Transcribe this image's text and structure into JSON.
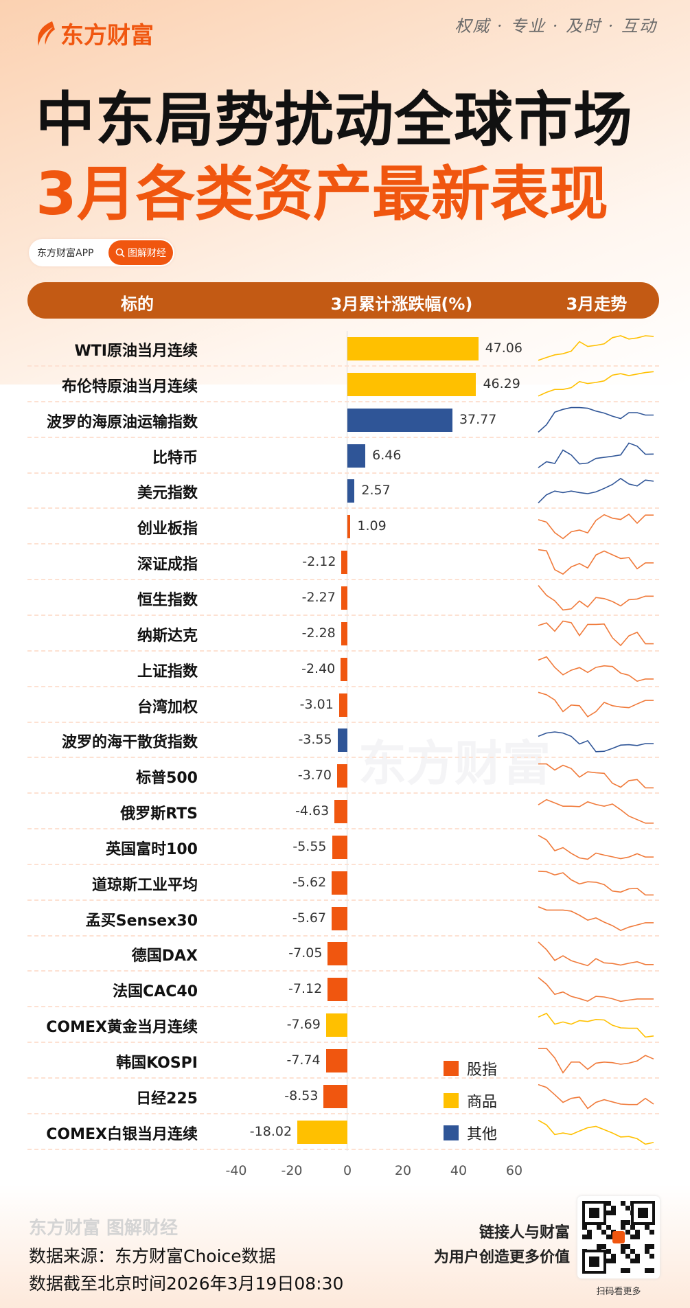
{
  "brand": {
    "logo": "东方财富",
    "slogan": "权威 · 专业 · 及时 · 互动"
  },
  "title": {
    "line1": "中东局势扰动全球市场",
    "line2": "3月各类资产最新表现"
  },
  "badge": {
    "app": "东方财富APP",
    "search_label": "图解财经",
    "icon": "search-icon"
  },
  "colors": {
    "equity": "#F0560F",
    "commodity": "#FFC000",
    "other": "#2F5597",
    "header": "#C35A14"
  },
  "table_header": {
    "col1": "标的",
    "col2": "3月累计涨跌幅(%)",
    "col3": "3月走势"
  },
  "chart_data": {
    "type": "bar",
    "orientation": "horizontal",
    "xlim": [
      -40,
      60
    ],
    "xticks": [
      "-40",
      "-20",
      "0",
      "20",
      "40",
      "60"
    ],
    "legend": [
      {
        "name": "股指",
        "category": "equity"
      },
      {
        "name": "商品",
        "category": "commodity"
      },
      {
        "name": "其他",
        "category": "other"
      }
    ],
    "legend_position": "bottom-right",
    "rows": [
      {
        "name": "WTI原油当月连续",
        "value": 47.06,
        "label": "47.06",
        "category": "commodity",
        "trend": [
          10,
          23,
          35,
          40,
          52,
          95,
          73,
          78,
          85,
          113,
          122,
          107,
          112,
          122,
          119
        ]
      },
      {
        "name": "布伦特原油当月连续",
        "value": 46.29,
        "label": "46.29",
        "category": "commodity",
        "trend": [
          10,
          27,
          40,
          40,
          48,
          76,
          67,
          72,
          79,
          105,
          112,
          103,
          110,
          117,
          121
        ]
      },
      {
        "name": "波罗的海原油运输指数",
        "value": 37.77,
        "label": "37.77",
        "category": "other",
        "trend": [
          8,
          42,
          99,
          112,
          120,
          120,
          117,
          104,
          95,
          81,
          70,
          97,
          97,
          86,
          86
        ]
      },
      {
        "name": "比特币",
        "value": 6.46,
        "label": "6.46",
        "category": "other",
        "trend": [
          9,
          36,
          28,
          89,
          67,
          26,
          30,
          51,
          56,
          61,
          67,
          121,
          107,
          70,
          71
        ]
      },
      {
        "name": "美元指数",
        "value": 2.57,
        "label": "2.57",
        "category": "other",
        "trend": [
          8,
          45,
          62,
          55,
          62,
          55,
          50,
          58,
          74,
          92,
          119,
          94,
          85,
          112,
          107
        ]
      },
      {
        "name": "创业板指",
        "value": 1.09,
        "label": "1.09",
        "category": "equity",
        "trend": [
          94,
          83,
          35,
          8,
          39,
          47,
          34,
          91,
          117,
          101,
          95,
          119,
          78,
          115,
          115
        ]
      },
      {
        "name": "深证成指",
        "value": -2.12,
        "label": "-2.12",
        "category": "equity",
        "trend": [
          120,
          115,
          29,
          9,
          42,
          57,
          37,
          96,
          114,
          97,
          80,
          84,
          33,
          60,
          60
        ]
      },
      {
        "name": "恒生指数",
        "value": -2.27,
        "label": "-2.27",
        "category": "equity",
        "trend": [
          120,
          75,
          50,
          8,
          13,
          49,
          22,
          65,
          60,
          47,
          27,
          55,
          58,
          71,
          71
        ]
      },
      {
        "name": "纳斯达克",
        "value": -2.28,
        "label": "-2.28",
        "category": "equity",
        "trend": [
          100,
          112,
          74,
          120,
          113,
          54,
          105,
          105,
          107,
          44,
          9,
          53,
          69,
          17,
          17
        ]
      },
      {
        "name": "上证指数",
        "value": -2.4,
        "label": "-2.40",
        "category": "equity",
        "trend": [
          105,
          120,
          72,
          38,
          59,
          71,
          49,
          72,
          79,
          76,
          46,
          36,
          9,
          19,
          19
        ]
      },
      {
        "name": "台湾加权",
        "value": -3.01,
        "label": "-3.01",
        "category": "equity",
        "trend": [
          121,
          110,
          86,
          33,
          63,
          60,
          10,
          33,
          75,
          60,
          54,
          51,
          68,
          84,
          84
        ]
      },
      {
        "name": "波罗的海干散货指数",
        "value": -3.55,
        "label": "-3.55",
        "category": "other",
        "trend": [
          80,
          95,
          100,
          95,
          80,
          45,
          60,
          10,
          12,
          25,
          40,
          42,
          38,
          47,
          47
        ]
      },
      {
        "name": "标普500",
        "value": -3.7,
        "label": "-3.70",
        "category": "equity",
        "trend": [
          117,
          117,
          89,
          111,
          96,
          57,
          81,
          77,
          74,
          29,
          11,
          41,
          46,
          8,
          8
        ]
      },
      {
        "name": "俄罗斯RTS",
        "value": -4.63,
        "label": "-4.63",
        "category": "equity",
        "trend": [
          93,
          117,
          102,
          87,
          87,
          85,
          107,
          95,
          87,
          97,
          71,
          42,
          26,
          10,
          10
        ]
      },
      {
        "name": "英国富时100",
        "value": -5.55,
        "label": "-5.55",
        "category": "equity",
        "trend": [
          117,
          96,
          47,
          61,
          35,
          14,
          8,
          36,
          27,
          19,
          11,
          18,
          33,
          18,
          18
        ]
      },
      {
        "name": "道琼斯工业平均",
        "value": -5.62,
        "label": "-5.62",
        "category": "equity",
        "trend": [
          116,
          114,
          99,
          109,
          77,
          58,
          68,
          66,
          55,
          26,
          21,
          36,
          38,
          8,
          8
        ]
      },
      {
        "name": "孟买Sensex30",
        "value": -5.67,
        "label": "-5.67",
        "category": "equity",
        "trend": [
          117,
          102,
          102,
          102,
          97,
          78,
          56,
          66,
          47,
          31,
          9,
          24,
          34,
          44,
          44
        ]
      },
      {
        "name": "德国DAX",
        "value": -7.05,
        "label": "-7.05",
        "category": "equity",
        "trend": [
          116,
          81,
          32,
          53,
          31,
          19,
          8,
          40,
          21,
          18,
          11,
          19,
          26,
          13,
          13
        ]
      },
      {
        "name": "法国CAC40",
        "value": -7.12,
        "label": "-7.12",
        "category": "equity",
        "trend": [
          117,
          86,
          40,
          51,
          31,
          21,
          9,
          31,
          28,
          20,
          8,
          14,
          19,
          19,
          19
        ]
      },
      {
        "name": "COMEX黄金当月连续",
        "value": -7.69,
        "label": "-7.69",
        "category": "commodity",
        "trend": [
          99,
          116,
          67,
          77,
          67,
          83,
          79,
          88,
          86,
          62,
          50,
          48,
          48,
          8,
          13
        ]
      },
      {
        "name": "韩国KOSPI",
        "value": -7.74,
        "label": "-7.74",
        "category": "equity",
        "trend": [
          119,
          119,
          76,
          8,
          57,
          57,
          24,
          52,
          57,
          54,
          47,
          52,
          62,
          87,
          71
        ]
      },
      {
        "name": "日经225",
        "value": -8.53,
        "label": "-8.53",
        "category": "equity",
        "trend": [
          117,
          104,
          71,
          36,
          54,
          60,
          8,
          36,
          48,
          38,
          28,
          26,
          26,
          54,
          28
        ]
      },
      {
        "name": "COMEX白银当月连续",
        "value": -18.02,
        "label": "-18.02",
        "category": "commodity",
        "trend": [
          117,
          96,
          52,
          59,
          52,
          68,
          83,
          89,
          74,
          59,
          41,
          43,
          33,
          8,
          16
        ]
      }
    ]
  },
  "watermark": "东方财富",
  "footer": {
    "watermark": "东方财富 图解财经",
    "source": "数据来源：东方财富Choice数据",
    "as_of": "数据截至北京时间2026年3月19日08:30",
    "tagline1": "链接人与财富",
    "tagline2": "为用户创造更多价值",
    "qr_caption": "扫码看更多"
  }
}
